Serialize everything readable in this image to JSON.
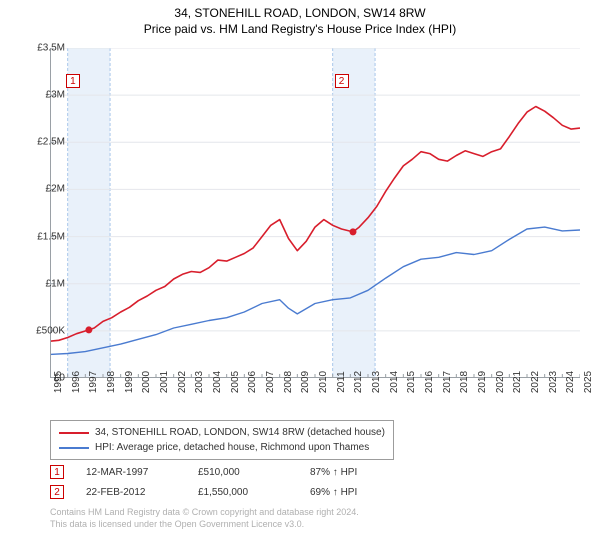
{
  "titles": {
    "line1": "34, STONEHILL ROAD, LONDON, SW14 8RW",
    "line2": "Price paid vs. HM Land Registry's House Price Index (HPI)"
  },
  "chart": {
    "type": "line",
    "background_color": "#ffffff",
    "axis_color": "#9aa0a6",
    "grid_color": "#e4e6eb",
    "band_fill": "#e9f1fa",
    "band_border": "#a8c6ea",
    "band_border_dash": "3,2",
    "xlim": [
      1995,
      2025
    ],
    "ylim": [
      0,
      3500000
    ],
    "y_ticks": [
      0,
      500000,
      1000000,
      1500000,
      2000000,
      2500000,
      3000000,
      3500000
    ],
    "y_tick_labels": [
      "£0",
      "£500K",
      "£1M",
      "£1.5M",
      "£2M",
      "£2.5M",
      "£3M",
      "£3.5M"
    ],
    "x_ticks": [
      1995,
      1996,
      1997,
      1998,
      1999,
      2000,
      2001,
      2002,
      2003,
      2004,
      2005,
      2006,
      2007,
      2008,
      2009,
      2010,
      2011,
      2012,
      2013,
      2014,
      2015,
      2016,
      2017,
      2018,
      2019,
      2020,
      2021,
      2022,
      2023,
      2024,
      2025
    ],
    "label_fontsize": 10,
    "title_fontsize": 12,
    "series": [
      {
        "name": "property",
        "label": "34, STONEHILL ROAD, LONDON, SW14 8RW (detached house)",
        "color": "#d81e2c",
        "line_width": 1.6,
        "data": [
          [
            1995,
            390000
          ],
          [
            1995.5,
            400000
          ],
          [
            1996,
            430000
          ],
          [
            1996.5,
            470000
          ],
          [
            1997.2,
            510000
          ],
          [
            1997.5,
            530000
          ],
          [
            1998,
            600000
          ],
          [
            1998.5,
            640000
          ],
          [
            1999,
            700000
          ],
          [
            1999.5,
            750000
          ],
          [
            2000,
            820000
          ],
          [
            2000.5,
            870000
          ],
          [
            2001,
            930000
          ],
          [
            2001.5,
            970000
          ],
          [
            2002,
            1050000
          ],
          [
            2002.5,
            1100000
          ],
          [
            2003,
            1130000
          ],
          [
            2003.5,
            1120000
          ],
          [
            2004,
            1170000
          ],
          [
            2004.5,
            1250000
          ],
          [
            2005,
            1240000
          ],
          [
            2005.5,
            1280000
          ],
          [
            2006,
            1320000
          ],
          [
            2006.5,
            1380000
          ],
          [
            2007,
            1500000
          ],
          [
            2007.5,
            1620000
          ],
          [
            2008,
            1680000
          ],
          [
            2008.5,
            1480000
          ],
          [
            2009,
            1350000
          ],
          [
            2009.5,
            1450000
          ],
          [
            2010,
            1600000
          ],
          [
            2010.5,
            1680000
          ],
          [
            2011,
            1620000
          ],
          [
            2011.5,
            1580000
          ],
          [
            2012.15,
            1550000
          ],
          [
            2012.5,
            1600000
          ],
          [
            2013,
            1700000
          ],
          [
            2013.5,
            1820000
          ],
          [
            2014,
            1980000
          ],
          [
            2014.5,
            2120000
          ],
          [
            2015,
            2250000
          ],
          [
            2015.5,
            2320000
          ],
          [
            2016,
            2400000
          ],
          [
            2016.5,
            2380000
          ],
          [
            2017,
            2320000
          ],
          [
            2017.5,
            2300000
          ],
          [
            2018,
            2360000
          ],
          [
            2018.5,
            2410000
          ],
          [
            2019,
            2380000
          ],
          [
            2019.5,
            2350000
          ],
          [
            2020,
            2400000
          ],
          [
            2020.5,
            2430000
          ],
          [
            2021,
            2560000
          ],
          [
            2021.5,
            2700000
          ],
          [
            2022,
            2820000
          ],
          [
            2022.5,
            2880000
          ],
          [
            2023,
            2830000
          ],
          [
            2023.5,
            2760000
          ],
          [
            2024,
            2680000
          ],
          [
            2024.5,
            2640000
          ],
          [
            2025,
            2650000
          ]
        ]
      },
      {
        "name": "hpi",
        "label": "HPI: Average price, detached house, Richmond upon Thames",
        "color": "#4a7bd0",
        "line_width": 1.4,
        "data": [
          [
            1995,
            250000
          ],
          [
            1996,
            260000
          ],
          [
            1997,
            280000
          ],
          [
            1998,
            320000
          ],
          [
            1999,
            360000
          ],
          [
            2000,
            410000
          ],
          [
            2001,
            460000
          ],
          [
            2002,
            530000
          ],
          [
            2003,
            570000
          ],
          [
            2004,
            610000
          ],
          [
            2005,
            640000
          ],
          [
            2006,
            700000
          ],
          [
            2007,
            790000
          ],
          [
            2008,
            830000
          ],
          [
            2008.5,
            740000
          ],
          [
            2009,
            680000
          ],
          [
            2010,
            790000
          ],
          [
            2011,
            830000
          ],
          [
            2012,
            850000
          ],
          [
            2013,
            930000
          ],
          [
            2014,
            1060000
          ],
          [
            2015,
            1180000
          ],
          [
            2016,
            1260000
          ],
          [
            2017,
            1280000
          ],
          [
            2018,
            1330000
          ],
          [
            2019,
            1310000
          ],
          [
            2020,
            1350000
          ],
          [
            2021,
            1470000
          ],
          [
            2022,
            1580000
          ],
          [
            2023,
            1600000
          ],
          [
            2024,
            1560000
          ],
          [
            2025,
            1570000
          ]
        ]
      }
    ],
    "sale_markers": [
      {
        "id": "1",
        "year": 1997.2,
        "price": 510000,
        "box_pos": [
          1996.3,
          3150000
        ]
      },
      {
        "id": "2",
        "year": 2012.15,
        "price": 1550000,
        "box_pos": [
          2011.5,
          3150000
        ]
      }
    ],
    "shade_bands": [
      {
        "from": 1996,
        "to": 1998.4
      },
      {
        "from": 2011,
        "to": 2013.4
      }
    ],
    "marker_dot_color": "#d81e2c",
    "marker_dot_radius": 3.5
  },
  "legend": {
    "rows": [
      {
        "color": "#d81e2c",
        "text": "34, STONEHILL ROAD, LONDON, SW14 8RW (detached house)"
      },
      {
        "color": "#4a7bd0",
        "text": "HPI: Average price, detached house, Richmond upon Thames"
      }
    ]
  },
  "sales": [
    {
      "id": "1",
      "date": "12-MAR-1997",
      "price": "£510,000",
      "pct": "87% ↑ HPI"
    },
    {
      "id": "2",
      "date": "22-FEB-2012",
      "price": "£1,550,000",
      "pct": "69% ↑ HPI"
    }
  ],
  "footer": {
    "line1": "Contains HM Land Registry data © Crown copyright and database right 2024.",
    "line2": "This data is licensed under the Open Government Licence v3.0."
  }
}
